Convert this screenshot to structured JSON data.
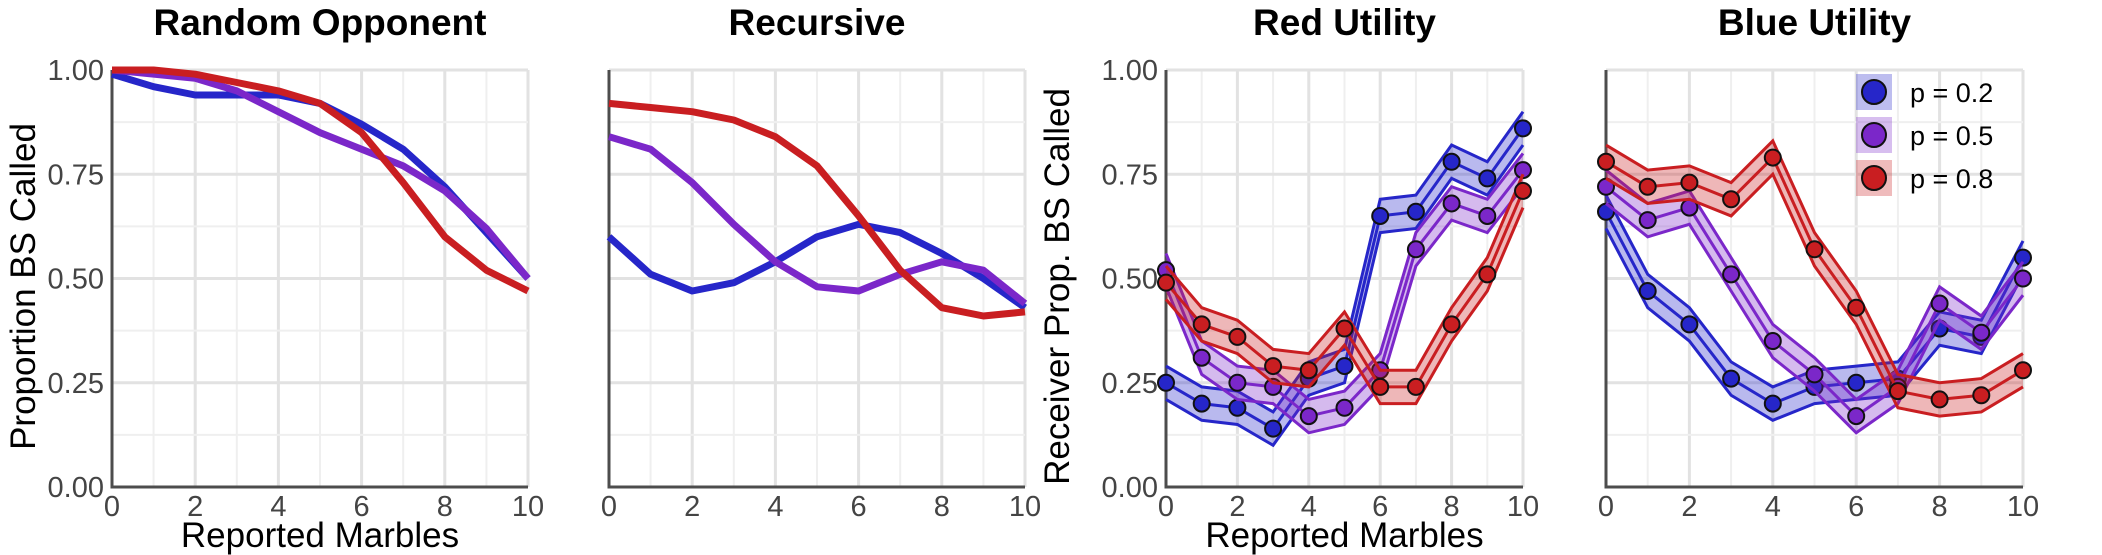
{
  "colors": {
    "p02": "#2626c9",
    "p05": "#7b27c9",
    "p08": "#c91e21"
  },
  "legend": [
    {
      "label": "p = 0.2",
      "color": "#2626c9"
    },
    {
      "label": "p = 0.5",
      "color": "#7b27c9"
    },
    {
      "label": "p = 0.8",
      "color": "#c91e21"
    }
  ],
  "chart_data": [
    {
      "type": "line",
      "title": "Random Opponent",
      "xlabel": "Reported Marbles",
      "ylabel": "Proportion BS Called",
      "xlim": [
        0,
        10
      ],
      "ylim": [
        0,
        1
      ],
      "x": [
        0,
        1,
        2,
        3,
        4,
        5,
        6,
        7,
        8,
        9,
        10
      ],
      "x_ticks": [
        "0",
        "2",
        "4",
        "6",
        "8",
        "10"
      ],
      "y_ticks": [
        "0.00",
        "0.25",
        "0.50",
        "0.75",
        "1.00"
      ],
      "series": [
        {
          "name": "p = 0.2",
          "color": "#2626c9",
          "values": [
            0.99,
            0.96,
            0.94,
            0.94,
            0.94,
            0.92,
            0.87,
            0.81,
            0.72,
            0.61,
            0.5
          ]
        },
        {
          "name": "p = 0.5",
          "color": "#7b27c9",
          "values": [
            1.0,
            0.99,
            0.98,
            0.95,
            0.9,
            0.85,
            0.81,
            0.77,
            0.71,
            0.62,
            0.5
          ]
        },
        {
          "name": "p = 0.8",
          "color": "#c91e21",
          "values": [
            1.0,
            1.0,
            0.99,
            0.97,
            0.95,
            0.92,
            0.85,
            0.73,
            0.6,
            0.52,
            0.47
          ]
        }
      ]
    },
    {
      "type": "line",
      "title": "Recursive",
      "xlabel": "",
      "ylabel": "",
      "xlim": [
        0,
        10
      ],
      "ylim": [
        0,
        1
      ],
      "x": [
        0,
        1,
        2,
        3,
        4,
        5,
        6,
        7,
        8,
        9,
        10
      ],
      "x_ticks": [
        "0",
        "2",
        "4",
        "6",
        "8",
        "10"
      ],
      "y_ticks": [],
      "series": [
        {
          "name": "p = 0.2",
          "color": "#2626c9",
          "values": [
            0.6,
            0.51,
            0.47,
            0.49,
            0.54,
            0.6,
            0.63,
            0.61,
            0.56,
            0.5,
            0.43
          ]
        },
        {
          "name": "p = 0.5",
          "color": "#7b27c9",
          "values": [
            0.84,
            0.81,
            0.73,
            0.63,
            0.54,
            0.48,
            0.47,
            0.51,
            0.54,
            0.52,
            0.44
          ]
        },
        {
          "name": "p = 0.8",
          "color": "#c91e21",
          "values": [
            0.92,
            0.91,
            0.9,
            0.88,
            0.84,
            0.77,
            0.65,
            0.52,
            0.43,
            0.41,
            0.42
          ]
        }
      ]
    },
    {
      "type": "line",
      "title": "Red Utility",
      "xlabel": "Reported Marbles",
      "ylabel": "Receiver Prop. BS Called",
      "xlim": [
        0,
        10
      ],
      "ylim": [
        0,
        1
      ],
      "x": [
        0,
        1,
        2,
        3,
        4,
        5,
        6,
        7,
        8,
        9,
        10
      ],
      "x_ticks": [
        "0",
        "2",
        "4",
        "6",
        "8",
        "10"
      ],
      "y_ticks": [
        "0.00",
        "0.25",
        "0.50",
        "0.75",
        "1.00"
      ],
      "markers": true,
      "band": 0.04,
      "series": [
        {
          "name": "p = 0.2",
          "color": "#2626c9",
          "values": [
            0.25,
            0.2,
            0.19,
            0.14,
            0.26,
            0.29,
            0.65,
            0.66,
            0.78,
            0.74,
            0.86
          ]
        },
        {
          "name": "p = 0.5",
          "color": "#7b27c9",
          "values": [
            0.52,
            0.31,
            0.25,
            0.24,
            0.17,
            0.19,
            0.28,
            0.57,
            0.68,
            0.65,
            0.76
          ]
        },
        {
          "name": "p = 0.8",
          "color": "#c91e21",
          "values": [
            0.49,
            0.39,
            0.36,
            0.29,
            0.28,
            0.38,
            0.24,
            0.24,
            0.39,
            0.51,
            0.71
          ]
        }
      ]
    },
    {
      "type": "line",
      "title": "Blue Utility",
      "xlabel": "",
      "ylabel": "",
      "xlim": [
        0,
        10
      ],
      "ylim": [
        0,
        1
      ],
      "x": [
        0,
        1,
        2,
        3,
        4,
        5,
        6,
        7,
        8,
        9,
        10
      ],
      "x_ticks": [
        "0",
        "2",
        "4",
        "6",
        "8",
        "10"
      ],
      "y_ticks": [],
      "markers": true,
      "band": 0.04,
      "series": [
        {
          "name": "p = 0.2",
          "color": "#2626c9",
          "values": [
            0.66,
            0.47,
            0.39,
            0.26,
            0.2,
            0.24,
            0.25,
            0.26,
            0.38,
            0.36,
            0.55
          ]
        },
        {
          "name": "p = 0.5",
          "color": "#7b27c9",
          "values": [
            0.72,
            0.64,
            0.67,
            0.51,
            0.35,
            0.27,
            0.17,
            0.24,
            0.44,
            0.37,
            0.5
          ]
        },
        {
          "name": "p = 0.8",
          "color": "#c91e21",
          "values": [
            0.78,
            0.72,
            0.73,
            0.69,
            0.79,
            0.57,
            0.43,
            0.23,
            0.21,
            0.22,
            0.28
          ]
        }
      ],
      "legend_position": "top-right"
    }
  ]
}
